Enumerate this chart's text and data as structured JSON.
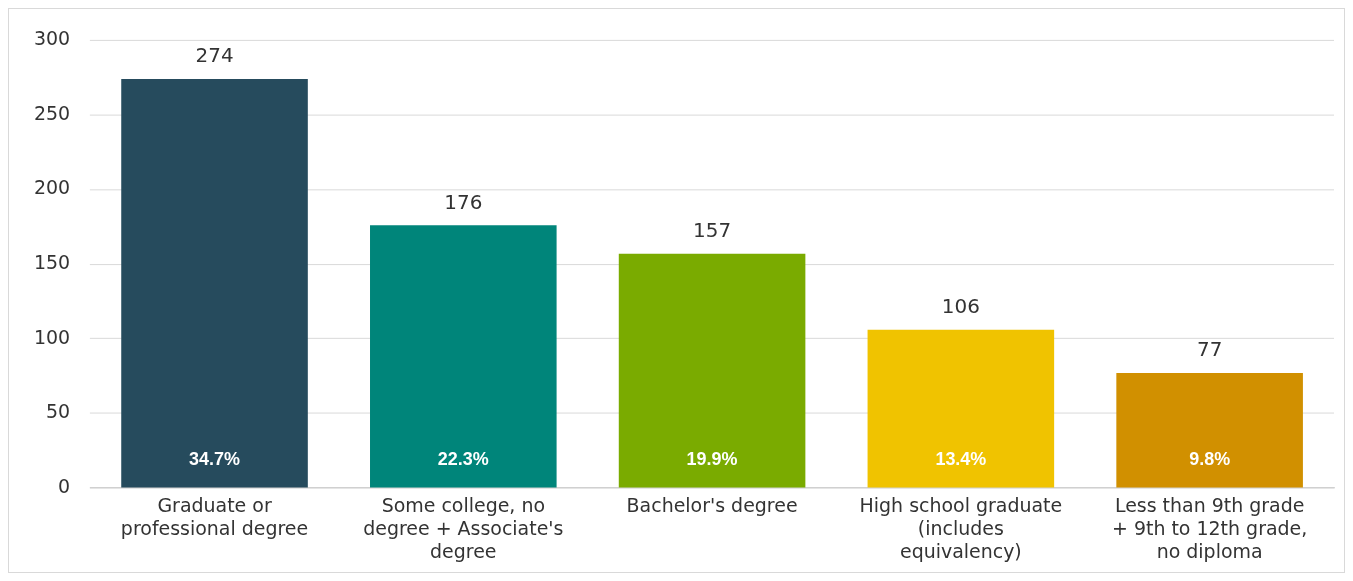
{
  "chart_data": {
    "type": "bar",
    "categories": [
      "Graduate or professional degree",
      "Some college, no degree + Associate's degree",
      "Bachelor's degree",
      "High school graduate (includes equivalency)",
      "Less than 9th grade + 9th to 12th grade, no diploma"
    ],
    "values": [
      274,
      176,
      157,
      106,
      77
    ],
    "annotations": [
      "34.7%",
      "22.3%",
      "19.9%",
      "13.4%",
      "9.8%"
    ],
    "colors": [
      "#264b5d",
      "#00857a",
      "#7aab00",
      "#f0c300",
      "#d19000"
    ],
    "ylim": [
      0,
      300
    ],
    "yticks": [
      0,
      50,
      100,
      150,
      200,
      250,
      300
    ],
    "grid": "y",
    "legend": false,
    "data_labels": true
  }
}
